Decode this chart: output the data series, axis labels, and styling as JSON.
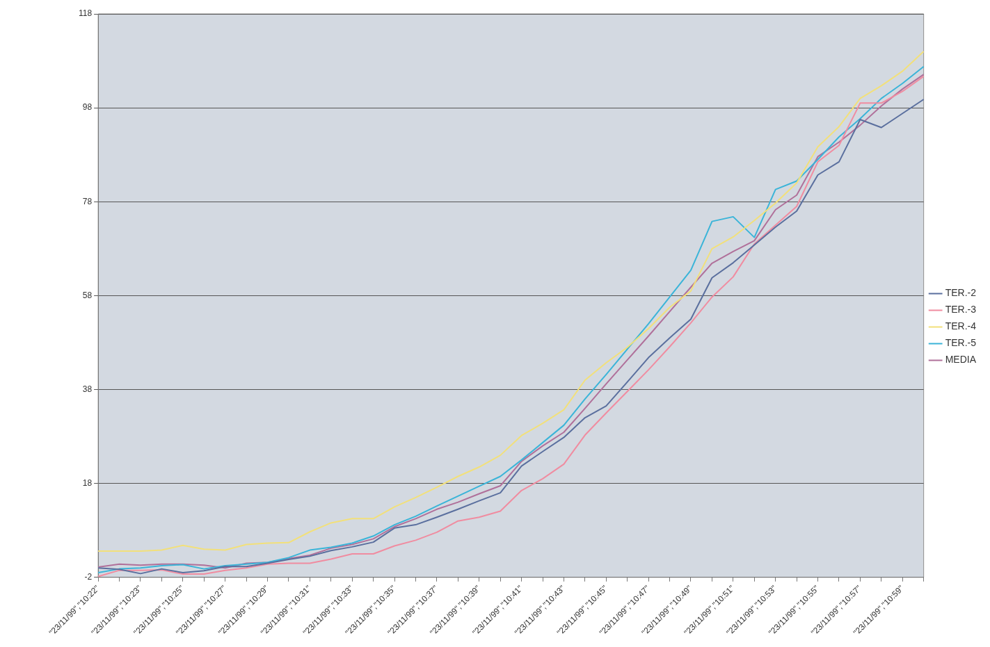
{
  "chart_data": {
    "type": "line",
    "categories": [
      "\"23/11/99\",\"10:22\"",
      null,
      "\"23/11/99\",\"10:23\"",
      null,
      "\"23/11/99\",\"10:25\"",
      null,
      "\"23/11/99\",\"10:27\"",
      null,
      "\"23/11/99\",\"10:29\"",
      null,
      "\"23/11/99\",\"10:31\"",
      null,
      "\"23/11/99\",\"10:33\"",
      null,
      "\"23/11/99\",\"10:35\"",
      null,
      "\"23/11/99\",\"10:37\"",
      null,
      "\"23/11/99\",\"10:39\"",
      null,
      "\"23/11/99\",\"10:41\"",
      null,
      "\"23/11/99\",\"10:43\"",
      null,
      "\"23/11/99\",\"10:45\"",
      null,
      "\"23/11/99\",\"10:47\"",
      null,
      "\"23/11/99\",\"10:49\"",
      null,
      "\"23/11/99\",\"10:51\"",
      null,
      "\"23/11/99\",\"10:53\"",
      null,
      "\"23/11/99\",\"10:55\"",
      null,
      "\"23/11/99\",\"10:57\"",
      null,
      "\"23/11/99\",\"10:59\"",
      null
    ],
    "series": [
      {
        "name": "TER.-2",
        "color": "#5a6f9e",
        "values": [
          0,
          -0.3,
          -1.2,
          -0.2,
          -1,
          -0.6,
          0.3,
          0.3,
          1,
          1.8,
          2.5,
          3.7,
          4.5,
          5.5,
          8.5,
          9.2,
          10.8,
          12.5,
          14.3,
          16,
          21.7,
          24.8,
          27.8,
          32,
          34.5,
          39.6,
          44.8,
          49,
          53,
          61.8,
          65,
          68.8,
          72.6,
          76,
          83.7,
          86.5,
          95.5,
          93.8,
          96.8,
          99.8
        ]
      },
      {
        "name": "TER.-3",
        "color": "#f08ca0",
        "values": [
          -1.8,
          -0.5,
          -0.5,
          -0.4,
          -1.3,
          -1.3,
          -0.5,
          0,
          0.8,
          1,
          1,
          1.9,
          3,
          3,
          4.7,
          5.9,
          7.6,
          10,
          10.8,
          12.1,
          16.5,
          19,
          22.1,
          28.3,
          33,
          37.6,
          42.2,
          47.1,
          52.2,
          57.7,
          62,
          69,
          73,
          77,
          86.5,
          90,
          99,
          99,
          101.5,
          104.7
        ]
      },
      {
        "name": "TER.-4",
        "color": "#f2e07a",
        "values": [
          3.6,
          3.6,
          3.6,
          3.8,
          4.8,
          4,
          3.8,
          5,
          5.3,
          5.4,
          7.7,
          9.6,
          10.5,
          10.5,
          13,
          15,
          17.2,
          19.5,
          21.5,
          24,
          28.2,
          30.8,
          33.7,
          40,
          43.7,
          47,
          51,
          55.5,
          59,
          68,
          70.5,
          74,
          77.7,
          82,
          89.7,
          94,
          100,
          102.7,
          105.8,
          110
        ]
      },
      {
        "name": "TER.-5",
        "color": "#3ab4d8",
        "values": [
          -1,
          -0.2,
          0,
          0.5,
          0.7,
          -0.2,
          0.5,
          0.8,
          1.2,
          2.2,
          3.8,
          4.4,
          5.3,
          6.8,
          9.2,
          11,
          13.2,
          15.3,
          17.4,
          19.5,
          23,
          26.7,
          30.4,
          36,
          41.2,
          46.6,
          52,
          57.7,
          63.4,
          73.8,
          74.8,
          70.4,
          80.6,
          82.4,
          87,
          91.8,
          95.7,
          100,
          103.2,
          106.8
        ]
      },
      {
        "name": "MEDIA",
        "color": "#b0709a",
        "values": [
          0.2,
          0.8,
          0.6,
          0.8,
          0.8,
          0.6,
          0,
          1,
          1.2,
          2,
          2.7,
          4.2,
          5,
          6.2,
          8.8,
          10.5,
          12.5,
          14,
          15.8,
          17.5,
          22.7,
          26,
          28.9,
          34,
          39.2,
          44.3,
          49.4,
          54.6,
          59.8,
          64.9,
          67.4,
          69.7,
          76.3,
          79.4,
          87.6,
          90.7,
          94.3,
          98.4,
          102,
          105.1
        ]
      }
    ],
    "ylim": [
      -2,
      118
    ],
    "yticks": [
      -2,
      18,
      38,
      58,
      78,
      98,
      118
    ],
    "grid": "y",
    "legend": "right",
    "marker": "none",
    "line_style": "solid"
  }
}
